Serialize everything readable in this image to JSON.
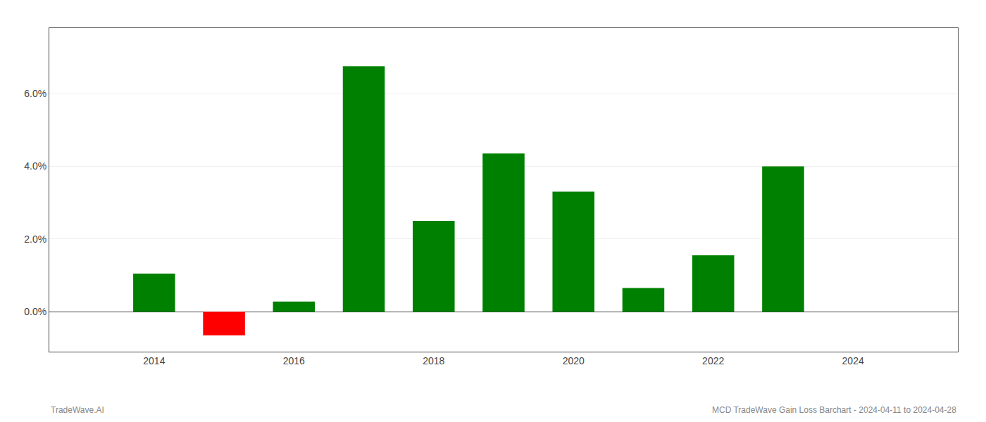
{
  "chart_data": {
    "type": "bar",
    "x": [
      2014,
      2015,
      2016,
      2017,
      2018,
      2019,
      2020,
      2021,
      2022,
      2023
    ],
    "values": [
      0.0105,
      -0.0065,
      0.0028,
      0.0675,
      0.025,
      0.0435,
      0.033,
      0.0065,
      0.0155,
      0.04
    ],
    "colors": [
      "#008000",
      "#ff0000",
      "#008000",
      "#008000",
      "#008000",
      "#008000",
      "#008000",
      "#008000",
      "#008000",
      "#008000"
    ],
    "xlim": [
      2012.5,
      2025.5
    ],
    "ylim": [
      -0.011,
      0.078
    ],
    "xticks": [
      2014,
      2016,
      2018,
      2020,
      2022,
      2024
    ],
    "yticks": [
      {
        "value": 0.0,
        "label": "0.0%"
      },
      {
        "value": 0.02,
        "label": "2.0%"
      },
      {
        "value": 0.04,
        "label": "4.0%"
      },
      {
        "value": 0.06,
        "label": "6.0%"
      }
    ],
    "grid": true,
    "annotations": [
      "TradeWave.AI",
      "MCD TradeWave Gain Loss Barchart - 2024-04-11 to 2024-04-28"
    ]
  }
}
